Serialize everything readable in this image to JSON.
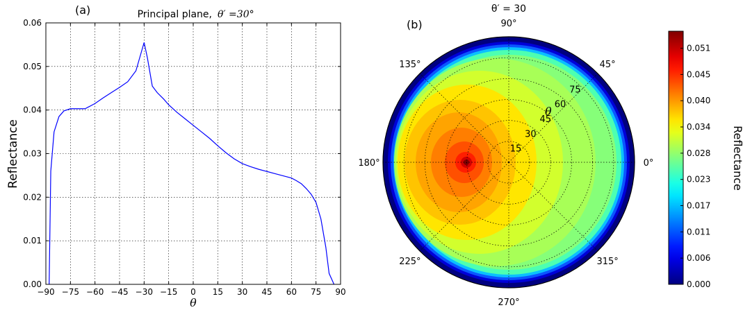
{
  "chart_data": [
    {
      "type": "line",
      "panel_label": "(a)",
      "title_prefix": "Principal plane,",
      "title_math": "θ′ =30°",
      "xlabel": "θ",
      "ylabel": "Reflectance",
      "xlim": [
        -90,
        90
      ],
      "ylim": [
        0,
        0.06
      ],
      "xticks": [
        -90,
        -75,
        -60,
        -45,
        -30,
        -15,
        0,
        15,
        30,
        45,
        60,
        75,
        90
      ],
      "xtick_labels": [
        "−90",
        "−75",
        "−60",
        "−45",
        "−30",
        "−15",
        "0",
        "15",
        "30",
        "45",
        "60",
        "75",
        "90"
      ],
      "yticks": [
        0,
        0.01,
        0.02,
        0.03,
        0.04,
        0.05,
        0.06
      ],
      "ytick_labels": [
        "0.00",
        "0.01",
        "0.02",
        "0.03",
        "0.04",
        "0.05",
        "0.06"
      ],
      "grid": true,
      "line_color": "#0000ff",
      "x": [
        -88,
        -87,
        -85,
        -82,
        -79,
        -75,
        -72,
        -69,
        -66,
        -60,
        -55,
        -50,
        -45,
        -40,
        -35,
        -30,
        -28,
        -25,
        -22,
        -18,
        -15,
        -10,
        -5,
        0,
        5,
        10,
        15,
        20,
        25,
        30,
        35,
        40,
        45,
        50,
        55,
        60,
        63,
        66,
        69,
        72,
        75,
        78,
        81,
        83,
        86
      ],
      "y": [
        0.0,
        0.026,
        0.035,
        0.0385,
        0.0398,
        0.0403,
        0.0403,
        0.0403,
        0.0403,
        0.0415,
        0.0428,
        0.044,
        0.0452,
        0.0465,
        0.049,
        0.0555,
        0.052,
        0.0455,
        0.044,
        0.0425,
        0.0412,
        0.0395,
        0.038,
        0.0365,
        0.035,
        0.0335,
        0.0318,
        0.0302,
        0.0288,
        0.0277,
        0.027,
        0.0264,
        0.0259,
        0.0254,
        0.0249,
        0.0244,
        0.0238,
        0.0231,
        0.022,
        0.0207,
        0.0188,
        0.015,
        0.0085,
        0.0025,
        0.0
      ]
    },
    {
      "type": "heatmap",
      "projection": "polar",
      "panel_label": "(b)",
      "title": "θ′ = 30",
      "radial_label": "θ",
      "angle_labels": [
        "0°",
        "45°",
        "90°",
        "135°",
        "180°",
        "225°",
        "270°",
        "315°"
      ],
      "radial_ticks": [
        15,
        30,
        45,
        60,
        75
      ],
      "radial_tick_labels": [
        "15",
        "30",
        "45",
        "60",
        "75"
      ],
      "rlim": [
        0,
        90
      ],
      "grid": true,
      "hotspot": {
        "phi": 180,
        "theta": 30,
        "value": 0.055
      },
      "colorbar": {
        "label": "Reflectance",
        "min": 0.0,
        "max": 0.055,
        "tick_labels": [
          "0.000",
          "0.006",
          "0.011",
          "0.017",
          "0.023",
          "0.028",
          "0.034",
          "0.040",
          "0.045",
          "0.051"
        ],
        "tick_values": [
          0.0,
          0.0057,
          0.0114,
          0.0171,
          0.0228,
          0.0285,
          0.0342,
          0.0399,
          0.0456,
          0.0513
        ],
        "colormap": "jet"
      }
    }
  ]
}
